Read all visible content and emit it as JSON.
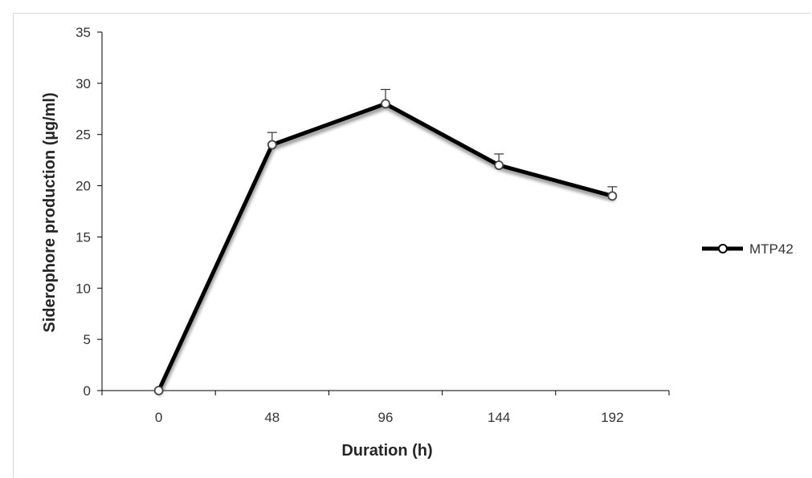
{
  "chart_data": {
    "type": "line",
    "title": "",
    "xlabel": "Duration (h)",
    "ylabel": "Siderophore production (µg/ml)",
    "categories": [
      "0",
      "48",
      "96",
      "144",
      "192"
    ],
    "series": [
      {
        "name": "MTP42",
        "values": [
          0,
          24,
          28,
          22,
          19
        ],
        "errors": [
          0,
          1.2,
          1.4,
          1.1,
          0.9
        ],
        "color": "#000000",
        "marker": "open-circle"
      }
    ],
    "ylim": [
      0,
      35
    ],
    "yticks": [
      0,
      5,
      10,
      15,
      20,
      25,
      30,
      35
    ],
    "grid": false,
    "legend_position": "right"
  }
}
